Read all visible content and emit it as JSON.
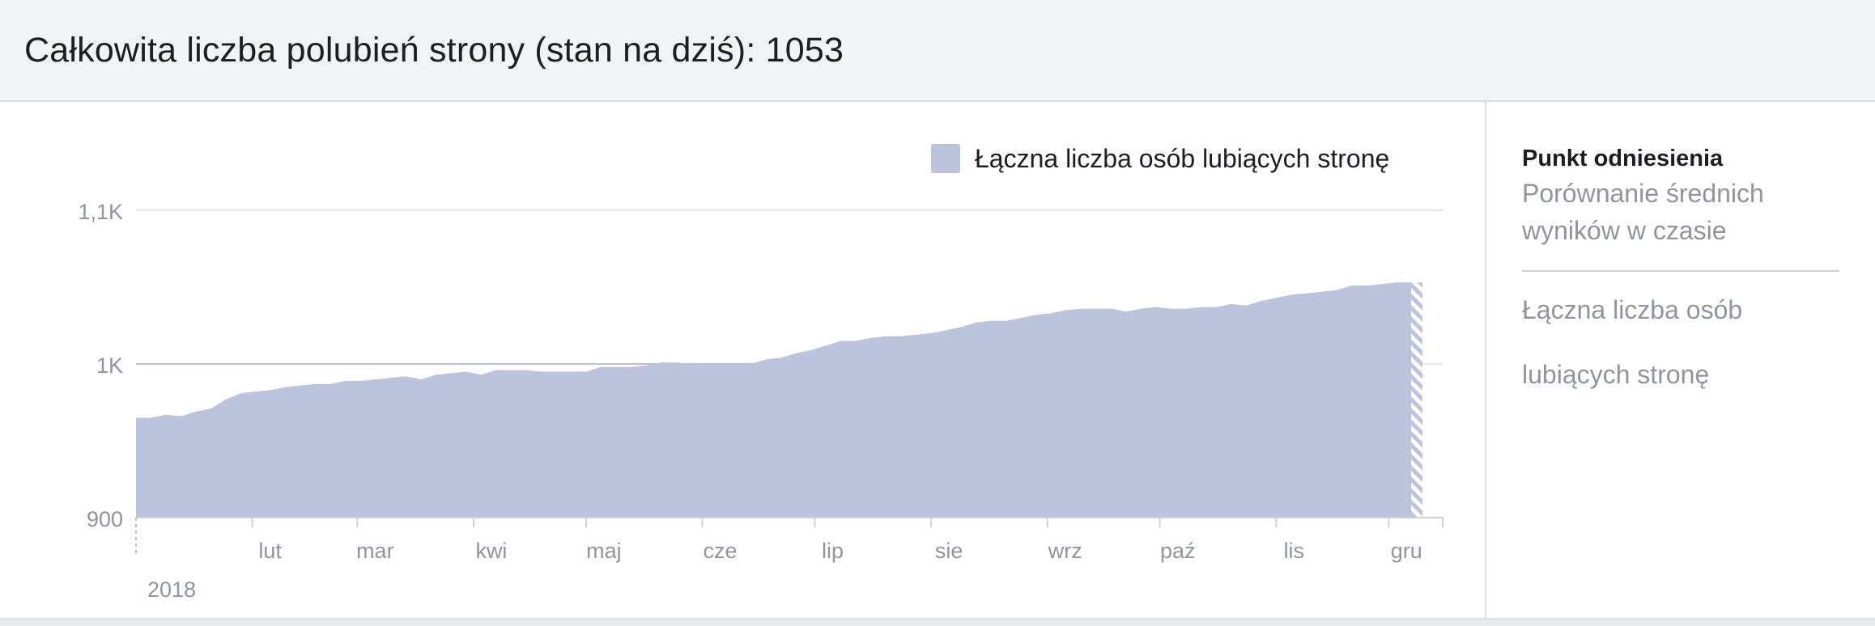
{
  "header": {
    "title": "Całkowita liczba polubień strony (stan na dziś): 1053"
  },
  "sidebar": {
    "title": "Punkt odniesienia",
    "subtitle_line1": "Porównanie średnich",
    "subtitle_line2": "wyników w czasie",
    "metric_line1": "Łączna liczba osób",
    "metric_line2": "lubiących stronę"
  },
  "colors": {
    "area": "#bcc3dc",
    "legend_swatch": "#bcc3dc",
    "grid": "#e4e6ea",
    "axis_text": "#90949c"
  },
  "chart_data": {
    "type": "area",
    "legend": [
      "Łączna liczba osób lubiących stronę"
    ],
    "legend_position": "top-right",
    "grid": true,
    "ylim": [
      900,
      1100
    ],
    "yticks": [
      {
        "value": 900,
        "label": "900"
      },
      {
        "value": 1000,
        "label": "1K"
      },
      {
        "value": 1100,
        "label": "1,1K"
      }
    ],
    "xlim": [
      "2018-01-01",
      "2018-12-10"
    ],
    "x_month_ticks": [
      {
        "date": "2018-02-01",
        "label": "lut"
      },
      {
        "date": "2018-03-01",
        "label": "mar"
      },
      {
        "date": "2018-04-01",
        "label": "kwi"
      },
      {
        "date": "2018-05-01",
        "label": "maj"
      },
      {
        "date": "2018-06-01",
        "label": "cze"
      },
      {
        "date": "2018-07-01",
        "label": "lip"
      },
      {
        "date": "2018-08-01",
        "label": "sie"
      },
      {
        "date": "2018-09-01",
        "label": "wrz"
      },
      {
        "date": "2018-10-01",
        "label": "paź"
      },
      {
        "date": "2018-11-01",
        "label": "lis"
      },
      {
        "date": "2018-12-01",
        "label": "gru"
      }
    ],
    "year_label": "2018",
    "series": [
      {
        "name": "Łączna liczba osób lubiących stronę",
        "x": [
          "2018-01-01",
          "2018-01-05",
          "2018-01-09",
          "2018-01-13",
          "2018-01-17",
          "2018-01-21",
          "2018-01-25",
          "2018-01-29",
          "2018-02-02",
          "2018-02-06",
          "2018-02-10",
          "2018-02-14",
          "2018-02-18",
          "2018-02-22",
          "2018-02-26",
          "2018-03-02",
          "2018-03-06",
          "2018-03-10",
          "2018-03-14",
          "2018-03-18",
          "2018-03-22",
          "2018-03-26",
          "2018-03-30",
          "2018-04-03",
          "2018-04-07",
          "2018-04-11",
          "2018-04-15",
          "2018-04-19",
          "2018-04-23",
          "2018-04-27",
          "2018-05-01",
          "2018-05-05",
          "2018-05-09",
          "2018-05-13",
          "2018-05-17",
          "2018-05-21",
          "2018-05-25",
          "2018-05-29",
          "2018-06-02",
          "2018-06-06",
          "2018-06-10",
          "2018-06-14",
          "2018-06-18",
          "2018-06-22",
          "2018-06-26",
          "2018-06-30",
          "2018-07-04",
          "2018-07-08",
          "2018-07-12",
          "2018-07-16",
          "2018-07-20",
          "2018-07-24",
          "2018-07-28",
          "2018-08-01",
          "2018-08-05",
          "2018-08-09",
          "2018-08-13",
          "2018-08-17",
          "2018-08-21",
          "2018-08-25",
          "2018-08-29",
          "2018-09-02",
          "2018-09-06",
          "2018-09-10",
          "2018-09-14",
          "2018-09-18",
          "2018-09-22",
          "2018-09-26",
          "2018-09-30",
          "2018-10-04",
          "2018-10-08",
          "2018-10-12",
          "2018-10-16",
          "2018-10-20",
          "2018-10-24",
          "2018-10-28",
          "2018-11-01",
          "2018-11-05",
          "2018-11-09",
          "2018-11-13",
          "2018-11-17",
          "2018-11-21",
          "2018-11-25",
          "2018-11-29",
          "2018-12-03",
          "2018-12-07",
          "2018-12-10"
        ],
        "values": [
          965,
          965,
          967,
          966,
          969,
          971,
          977,
          981,
          982,
          983,
          985,
          986,
          987,
          987,
          989,
          989,
          990,
          991,
          992,
          990,
          993,
          994,
          995,
          993,
          996,
          996,
          996,
          995,
          995,
          995,
          995,
          998,
          998,
          998,
          999,
          1001,
          1001,
          1000,
          1000,
          1000,
          1000,
          1000,
          1003,
          1004,
          1007,
          1009,
          1012,
          1015,
          1015,
          1017,
          1018,
          1018,
          1019,
          1020,
          1022,
          1024,
          1027,
          1028,
          1028,
          1030,
          1032,
          1033,
          1035,
          1036,
          1036,
          1036,
          1034,
          1036,
          1037,
          1036,
          1036,
          1037,
          1037,
          1039,
          1038,
          1041,
          1043,
          1045,
          1046,
          1047,
          1048,
          1051,
          1051,
          1052,
          1053,
          1053,
          1053
        ]
      }
    ]
  }
}
